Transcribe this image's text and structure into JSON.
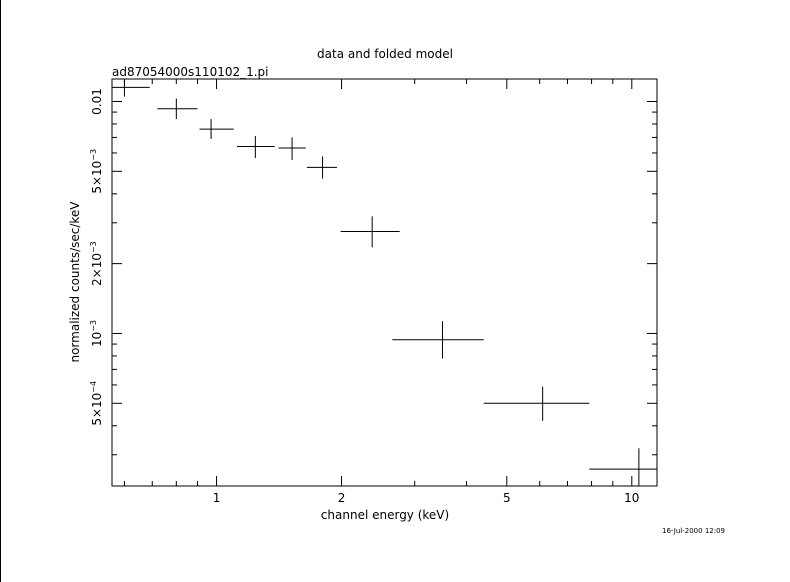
{
  "chart_data": {
    "type": "scatter",
    "title": "data and folded model",
    "subtitle": "ad87054000s110102_1.pi",
    "xlabel": "channel energy (keV)",
    "ylabel": "normalized counts/sec/keV",
    "timestamp": "16-Jul-2000 12:09",
    "x_scale": "log",
    "y_scale": "log",
    "xlim": [
      0.56,
      11.5
    ],
    "ylim": [
      0.00022,
      0.0125
    ],
    "x_ticks": [
      {
        "value": 1,
        "label": "1"
      },
      {
        "value": 2,
        "label": "2"
      },
      {
        "value": 5,
        "label": "5"
      },
      {
        "value": 10,
        "label": "10"
      }
    ],
    "y_ticks": [
      {
        "value": 0.0005,
        "label_base": "5×10",
        "label_exp": "−4"
      },
      {
        "value": 0.001,
        "label_base": "10",
        "label_exp": "−3"
      },
      {
        "value": 0.002,
        "label_base": "2×10",
        "label_exp": "−3"
      },
      {
        "value": 0.005,
        "label_base": "5×10",
        "label_exp": "−3"
      },
      {
        "value": 0.01,
        "label_base": "0.01",
        "label_exp": ""
      }
    ],
    "grid": false,
    "points": [
      {
        "x": 0.6,
        "xlo": 0.56,
        "xhi": 0.69,
        "y": 0.0115,
        "ylo": 0.0105,
        "yhi": 0.0127
      },
      {
        "x": 0.8,
        "xlo": 0.72,
        "xhi": 0.9,
        "y": 0.0093,
        "ylo": 0.0084,
        "yhi": 0.0103
      },
      {
        "x": 0.97,
        "xlo": 0.91,
        "xhi": 1.1,
        "y": 0.0076,
        "ylo": 0.0069,
        "yhi": 0.0084
      },
      {
        "x": 1.24,
        "xlo": 1.12,
        "xhi": 1.38,
        "y": 0.0064,
        "ylo": 0.0057,
        "yhi": 0.0071
      },
      {
        "x": 1.52,
        "xlo": 1.41,
        "xhi": 1.64,
        "y": 0.0063,
        "ylo": 0.0056,
        "yhi": 0.007
      },
      {
        "x": 1.8,
        "xlo": 1.65,
        "xhi": 1.95,
        "y": 0.0052,
        "ylo": 0.00465,
        "yhi": 0.0058
      },
      {
        "x": 2.37,
        "xlo": 1.99,
        "xhi": 2.76,
        "y": 0.00275,
        "ylo": 0.00235,
        "yhi": 0.0032
      },
      {
        "x": 3.5,
        "xlo": 2.65,
        "xhi": 4.4,
        "y": 0.00094,
        "ylo": 0.00078,
        "yhi": 0.00113
      },
      {
        "x": 6.1,
        "xlo": 4.4,
        "xhi": 7.9,
        "y": 0.0005,
        "ylo": 0.00042,
        "yhi": 0.00059
      },
      {
        "x": 10.4,
        "xlo": 7.9,
        "xhi": 11.5,
        "y": 0.00026,
        "ylo": 0.00021,
        "yhi": 0.00032
      }
    ]
  }
}
